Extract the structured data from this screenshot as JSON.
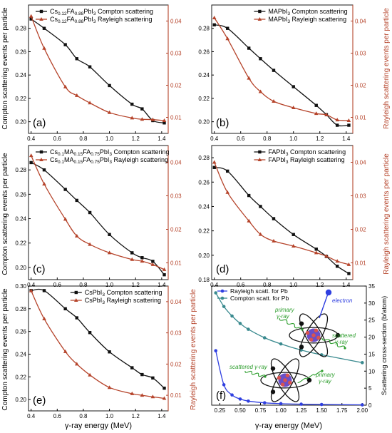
{
  "figure": {
    "shared_xlabel": "γ-ray energy (MeV)",
    "ylabel_compton": "Compton scattering events per particle",
    "ylabel_rayleigh": "Rayleigh scattering events per particle",
    "colors": {
      "compton": "#111111",
      "rayleigh": "#b5432a",
      "pb_compton": "#3a8a8f",
      "pb_rayleigh": "#2f3fe0",
      "electron": "#2f3fe0",
      "annotation": "#2e9e2e"
    }
  },
  "chart_data": [
    {
      "panel": "(a)",
      "type": "line",
      "legend": {
        "placement": "top-left"
      },
      "ylim_left": [
        0.19,
        0.3
      ],
      "yticks_left": [
        0.2,
        0.22,
        0.24,
        0.26,
        0.28
      ],
      "ylim_right": [
        0.005,
        0.045
      ],
      "yticks_right": [
        0.01,
        0.02,
        0.03,
        0.04
      ],
      "xlim": [
        0.38,
        1.45
      ],
      "xticks": [
        0.4,
        0.6,
        0.8,
        1.0,
        1.2,
        1.4
      ],
      "series": [
        {
          "name": "Cs0.12FA0.88PbI3 Compton scattering",
          "legend_label": [
            "Cs",
            "0.12",
            "FA",
            "0.88",
            "PbI",
            "3",
            " Compton scattering"
          ],
          "axis": "left",
          "marker": "square",
          "x": [
            0.4,
            0.5,
            0.662,
            0.75,
            0.85,
            1.0,
            1.173,
            1.25,
            1.332,
            1.42
          ],
          "y": [
            0.288,
            0.28,
            0.266,
            0.254,
            0.247,
            0.231,
            0.215,
            0.211,
            0.201,
            0.199
          ]
        },
        {
          "name": "Cs0.12FA0.88PbI3 Rayleigh scattering",
          "legend_label": [
            "Cs",
            "0.12",
            "FA",
            "0.88",
            "PbI",
            "3",
            " Rayleigh scattering"
          ],
          "axis": "right",
          "marker": "triangle",
          "x": [
            0.4,
            0.5,
            0.662,
            0.75,
            0.85,
            1.0,
            1.173,
            1.25,
            1.332,
            1.42
          ],
          "y": [
            0.0415,
            0.0315,
            0.0195,
            0.0168,
            0.0145,
            0.0115,
            0.0098,
            0.0094,
            0.0093,
            0.009
          ]
        }
      ]
    },
    {
      "panel": "(b)",
      "type": "line",
      "legend": {
        "placement": "top-right"
      },
      "ylim_left": [
        0.19,
        0.3
      ],
      "yticks_left": [
        0.2,
        0.22,
        0.24,
        0.26,
        0.28
      ],
      "ylim_right": [
        0.005,
        0.045
      ],
      "yticks_right": [
        0.01,
        0.02,
        0.03,
        0.04
      ],
      "xlim": [
        0.38,
        1.45
      ],
      "xticks": [
        0.4,
        0.6,
        0.8,
        1.0,
        1.2,
        1.4
      ],
      "series": [
        {
          "name": "MAPbI3 Compton scattering",
          "legend_label": [
            "MAPbI",
            "3",
            " Compton scattering"
          ],
          "axis": "left",
          "marker": "square",
          "x": [
            0.4,
            0.5,
            0.662,
            0.75,
            0.85,
            1.0,
            1.173,
            1.25,
            1.332,
            1.42
          ],
          "y": [
            0.283,
            0.28,
            0.263,
            0.254,
            0.244,
            0.23,
            0.214,
            0.206,
            0.197,
            0.197
          ]
        },
        {
          "name": "MAPbI3 Rayleigh scattering",
          "legend_label": [
            "MAPbI",
            "3",
            " Rayleigh scattering"
          ],
          "axis": "right",
          "marker": "triangle",
          "x": [
            0.4,
            0.5,
            0.662,
            0.75,
            0.85,
            1.0,
            1.173,
            1.25,
            1.332,
            1.42
          ],
          "y": [
            0.041,
            0.0345,
            0.0222,
            0.018,
            0.015,
            0.013,
            0.0112,
            0.0108,
            0.0092,
            0.009
          ]
        }
      ]
    },
    {
      "panel": "(c)",
      "type": "line",
      "legend": {
        "placement": "top-left"
      },
      "ylim_left": [
        0.19,
        0.3
      ],
      "yticks_left": [
        0.2,
        0.22,
        0.24,
        0.26,
        0.28
      ],
      "ylim_right": [
        0.005,
        0.045
      ],
      "yticks_right": [
        0.01,
        0.02,
        0.03,
        0.04
      ],
      "xlim": [
        0.38,
        1.45
      ],
      "xticks": [
        0.4,
        0.6,
        0.8,
        1.0,
        1.2,
        1.4
      ],
      "series": [
        {
          "name": "Cs0.1MA0.15FA0.75PbI3 Compton scattering",
          "legend_label": [
            "Cs",
            "0.1",
            "MA",
            "0.15",
            "FA",
            "0.75",
            "PbI",
            "3",
            " Compton scattering"
          ],
          "axis": "left",
          "marker": "square",
          "x": [
            0.4,
            0.5,
            0.662,
            0.75,
            0.85,
            1.0,
            1.173,
            1.25,
            1.332,
            1.42
          ],
          "y": [
            0.286,
            0.28,
            0.264,
            0.255,
            0.245,
            0.227,
            0.212,
            0.208,
            0.205,
            0.194
          ]
        },
        {
          "name": "Cs0.1MA0.15FA0.75PbI3 Rayleigh scattering",
          "legend_label": [
            "Cs",
            "0.1",
            "MA",
            "0.15",
            "FA",
            "0.75",
            "PbI",
            "3",
            " Rayleigh scattering"
          ],
          "axis": "right",
          "marker": "triangle",
          "x": [
            0.4,
            0.5,
            0.662,
            0.75,
            0.85,
            1.0,
            1.173,
            1.25,
            1.332,
            1.42
          ],
          "y": [
            0.042,
            0.0335,
            0.023,
            0.018,
            0.0155,
            0.013,
            0.011,
            0.0105,
            0.0095,
            0.008
          ]
        }
      ]
    },
    {
      "panel": "(d)",
      "type": "line",
      "legend": {
        "placement": "top-right"
      },
      "ylim_left": [
        0.18,
        0.29
      ],
      "yticks_left": [
        0.18,
        0.2,
        0.22,
        0.24,
        0.26,
        0.28
      ],
      "ylim_right": [
        0.005,
        0.045
      ],
      "yticks_right": [
        0.01,
        0.02,
        0.03,
        0.04
      ],
      "xlim": [
        0.38,
        1.45
      ],
      "xticks": [
        0.4,
        0.6,
        0.8,
        1.0,
        1.2,
        1.4
      ],
      "series": [
        {
          "name": "FAPbI3 Compton scattering",
          "legend_label": [
            "FAPbI",
            "3",
            " Compton scattering"
          ],
          "axis": "left",
          "marker": "square",
          "x": [
            0.4,
            0.5,
            0.662,
            0.75,
            0.85,
            1.0,
            1.173,
            1.25,
            1.332,
            1.42
          ],
          "y": [
            0.272,
            0.269,
            0.249,
            0.24,
            0.23,
            0.217,
            0.205,
            0.199,
            0.191,
            0.185
          ]
        },
        {
          "name": "FAPbI3 Rayleigh scattering",
          "legend_label": [
            "FAPbI",
            "3",
            " Rayleigh scattering"
          ],
          "axis": "right",
          "marker": "triangle",
          "x": [
            0.4,
            0.5,
            0.662,
            0.75,
            0.85,
            1.0,
            1.173,
            1.25,
            1.332,
            1.42
          ],
          "y": [
            0.04,
            0.031,
            0.0225,
            0.0185,
            0.0165,
            0.015,
            0.013,
            0.012,
            0.0105,
            0.0095
          ]
        }
      ]
    },
    {
      "panel": "(e)",
      "type": "line",
      "legend": {
        "placement": "top-right"
      },
      "ylim_left": [
        0.19,
        0.3
      ],
      "yticks_left": [
        0.2,
        0.22,
        0.24,
        0.26,
        0.28,
        0.3
      ],
      "ylim_right": [
        0.005,
        0.045
      ],
      "yticks_right": [
        0.01,
        0.02,
        0.03,
        0.04
      ],
      "xlim": [
        0.38,
        1.45
      ],
      "xticks": [
        0.4,
        0.6,
        0.8,
        1.0,
        1.2,
        1.4
      ],
      "series": [
        {
          "name": "CsPbI3 Compton scattering",
          "legend_label": [
            "CsPbI",
            "3",
            " Compton scattering"
          ],
          "axis": "left",
          "marker": "square",
          "x": [
            0.4,
            0.5,
            0.662,
            0.75,
            0.85,
            1.0,
            1.173,
            1.25,
            1.332,
            1.42
          ],
          "y": [
            0.296,
            0.296,
            0.28,
            0.272,
            0.259,
            0.242,
            0.228,
            0.222,
            0.219,
            0.21
          ]
        },
        {
          "name": "CsPbI3 Rayleigh scattering",
          "legend_label": [
            "CsPbI",
            "3",
            " Rayleigh scattering"
          ],
          "axis": "right",
          "marker": "triangle",
          "x": [
            0.4,
            0.5,
            0.662,
            0.75,
            0.85,
            1.0,
            1.173,
            1.25,
            1.332,
            1.42
          ],
          "y": [
            0.0435,
            0.0345,
            0.024,
            0.02,
            0.0165,
            0.0125,
            0.0105,
            0.01,
            0.0095,
            0.009
          ]
        }
      ]
    },
    {
      "panel": "(f)",
      "type": "line",
      "legend": {
        "placement": "top-left"
      },
      "xlim": [
        0.15,
        2.05
      ],
      "xticks": [
        0.25,
        0.5,
        0.75,
        1.0,
        1.25,
        1.5,
        1.75,
        2.0
      ],
      "ylim_right": [
        0,
        35
      ],
      "yticks_right": [
        0,
        5,
        10,
        15,
        20,
        25,
        30,
        35
      ],
      "ylabel_right": "Scattering cross-section (b/atom)",
      "series": [
        {
          "name": "Rayleigh scatt. for Pb",
          "axis": "right",
          "marker": "circle",
          "color_key": "pb_rayleigh",
          "x": [
            0.2,
            0.3,
            0.4,
            0.5,
            0.6,
            0.8,
            1.0,
            1.25,
            1.5,
            2.0
          ],
          "y": [
            16.0,
            6.0,
            3.0,
            1.8,
            1.2,
            0.7,
            0.45,
            0.3,
            0.2,
            0.1
          ]
        },
        {
          "name": "Compton scatt. for Pb",
          "axis": "right",
          "marker": "circle",
          "color_key": "pb_compton",
          "x": [
            0.2,
            0.3,
            0.4,
            0.5,
            0.6,
            0.8,
            1.0,
            1.25,
            1.5,
            2.0
          ],
          "y": [
            33.0,
            29.0,
            26.2,
            24.0,
            22.3,
            19.8,
            18.0,
            16.2,
            14.8,
            12.5
          ]
        }
      ],
      "annotations": {
        "electron": "electron",
        "primary_top": [
          "primary",
          "γ-ray"
        ],
        "scattered_top": [
          "scattered",
          "γ-ray"
        ],
        "scattered_bottom": "scattered γ-ray",
        "primary_bottom": [
          "primary",
          "γ-ray"
        ]
      }
    }
  ]
}
